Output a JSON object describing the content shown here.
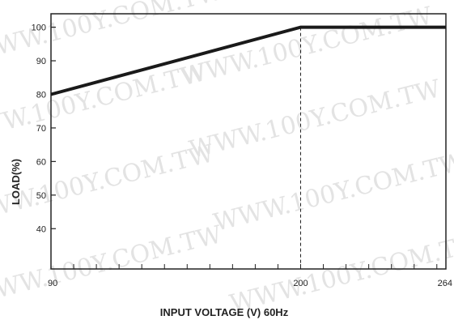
{
  "watermark": "WWW.100Y.COM.TW",
  "colors": {
    "line": "#1a1a1a",
    "axis": "#222222",
    "text": "#222222",
    "watermark": "#e3e3e3"
  },
  "chart_data": {
    "type": "line",
    "xlabel": "INPUT VOLTAGE (V) 60Hz",
    "ylabel": "LOAD(%)",
    "xlim": [
      90,
      264
    ],
    "ylim": [
      28,
      104
    ],
    "x_ticks": [
      90,
      200,
      264
    ],
    "x_tick_labels": [
      "90",
      "200",
      "264"
    ],
    "y_ticks": [
      40,
      50,
      60,
      70,
      80,
      90,
      100
    ],
    "y_tick_labels": [
      "40",
      "50",
      "60",
      "70",
      "80",
      "90",
      "100"
    ],
    "series": [
      {
        "x": [
          90,
          200,
          264
        ],
        "y": [
          80,
          100,
          100
        ]
      }
    ],
    "reference_lines": [
      {
        "orientation": "vertical",
        "x": 200,
        "style": "dashed"
      }
    ],
    "grid": false
  }
}
